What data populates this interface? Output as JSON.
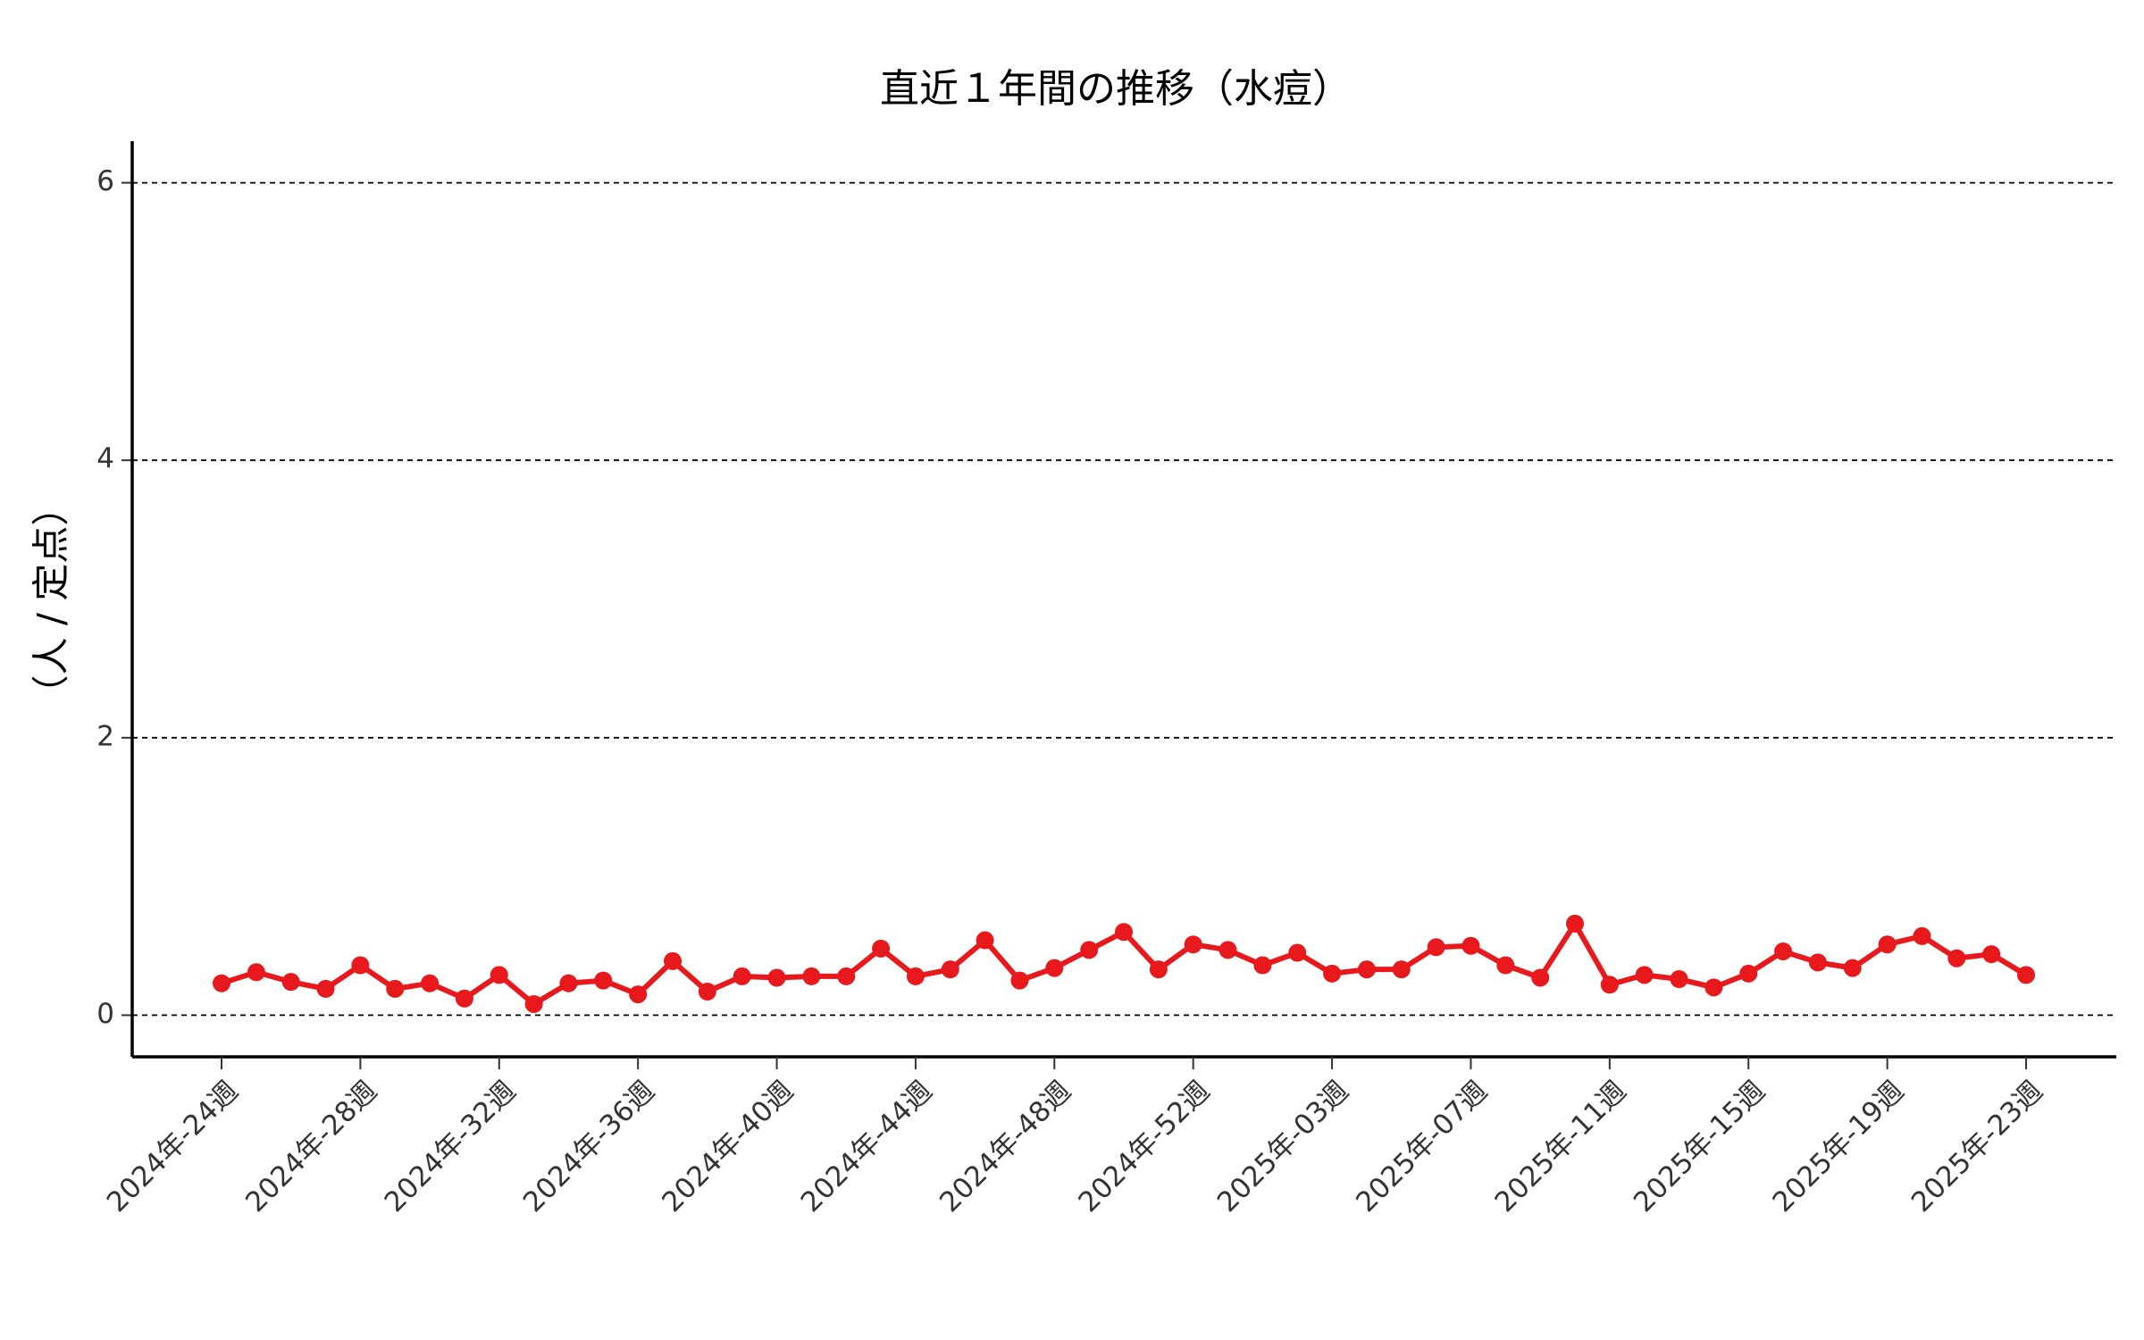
{
  "chart_data": {
    "type": "line",
    "title": "直近１年間の推移（水痘）",
    "y_label": "（人 / 定点）",
    "categories": [
      "2024年-24週",
      null,
      null,
      null,
      "2024年-28週",
      null,
      null,
      null,
      "2024年-32週",
      null,
      null,
      null,
      "2024年-36週",
      null,
      null,
      null,
      "2024年-40週",
      null,
      null,
      null,
      "2024年-44週",
      null,
      null,
      null,
      "2024年-48週",
      null,
      null,
      null,
      "2024年-52週",
      null,
      null,
      null,
      "2025年-03週",
      null,
      null,
      null,
      "2025年-07週",
      null,
      null,
      null,
      "2025年-11週",
      null,
      null,
      null,
      "2025年-15週",
      null,
      null,
      null,
      "2025年-19週",
      null,
      null,
      null,
      "2025年-23週"
    ],
    "values": [
      0.23,
      0.31,
      0.24,
      0.19,
      0.36,
      0.19,
      0.23,
      0.12,
      0.29,
      0.08,
      0.23,
      0.25,
      0.15,
      0.39,
      0.17,
      0.28,
      0.27,
      0.28,
      0.28,
      0.48,
      0.28,
      0.33,
      0.54,
      0.25,
      0.34,
      0.47,
      0.6,
      0.33,
      0.51,
      0.47,
      0.36,
      0.45,
      0.3,
      0.33,
      0.33,
      0.49,
      0.5,
      0.36,
      0.27,
      0.66,
      0.22,
      0.29,
      0.26,
      0.2,
      0.3,
      0.46,
      0.38,
      0.34,
      0.51,
      0.57,
      0.41,
      0.44,
      0.29
    ],
    "color": "#e8191c",
    "ylim": [
      -0.3,
      6.3
    ],
    "yticks": [
      0,
      2,
      4,
      6
    ],
    "grid": true
  }
}
